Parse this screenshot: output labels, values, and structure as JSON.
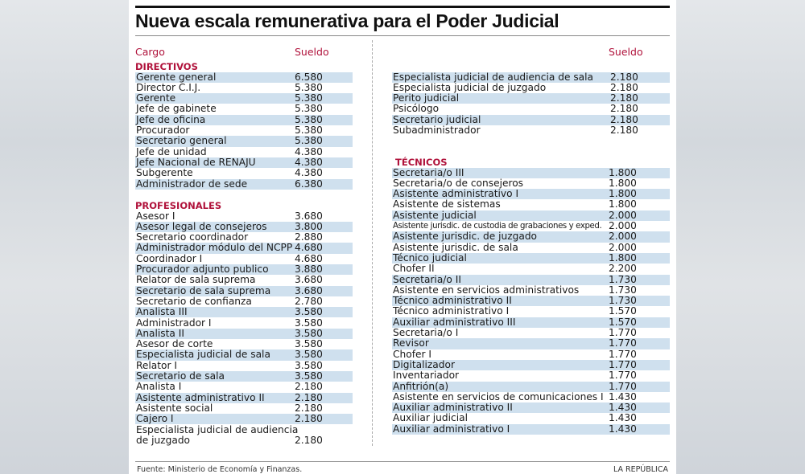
{
  "title": "Nueva escala remunerativa para el Poder Judicial",
  "headers": {
    "cargo": "Cargo",
    "sueldo": "Sueldo"
  },
  "left": {
    "directivos": {
      "label": "DIRECTIVOS",
      "stripe": "odd",
      "rows": [
        {
          "cargo": "Gerente general",
          "sueldo": "6.580"
        },
        {
          "cargo": "Director C.I.J.",
          "sueldo": "5.380"
        },
        {
          "cargo": "Gerente",
          "sueldo": "5.380"
        },
        {
          "cargo": "Jefe de gabinete",
          "sueldo": "5.380"
        },
        {
          "cargo": "Jefe de oficina",
          "sueldo": "5.380"
        },
        {
          "cargo": "Procurador",
          "sueldo": "5.380"
        },
        {
          "cargo": "Secretario general",
          "sueldo": "5.380"
        },
        {
          "cargo": "Jefe de unidad",
          "sueldo": "4.380"
        },
        {
          "cargo": "Jefe Nacional de RENAJU",
          "sueldo": "4.380"
        },
        {
          "cargo": "Subgerente",
          "sueldo": "4.380"
        },
        {
          "cargo": "Administrador de sede",
          "sueldo": "6.380"
        }
      ]
    },
    "profesionales": {
      "label": "PROFESIONALES",
      "stripe": "even",
      "rows": [
        {
          "cargo": "Asesor I",
          "sueldo": "3.680"
        },
        {
          "cargo": "Asesor legal de consejeros",
          "sueldo": "3.800"
        },
        {
          "cargo": "Secretario coordinador",
          "sueldo": "2.880"
        },
        {
          "cargo": "Administrador módulo del NCPP",
          "sueldo": "4.680"
        },
        {
          "cargo": "Coordinador I",
          "sueldo": "4.680"
        },
        {
          "cargo": "Procurador adjunto publico",
          "sueldo": "3.880"
        },
        {
          "cargo": "Relator de sala suprema",
          "sueldo": "3.680"
        },
        {
          "cargo": "Secretario de sala suprema",
          "sueldo": "3.680"
        },
        {
          "cargo": "Secretario de confianza",
          "sueldo": "2.780"
        },
        {
          "cargo": "Analista III",
          "sueldo": "3.580"
        },
        {
          "cargo": "Administrador I",
          "sueldo": "3.580"
        },
        {
          "cargo": "Analista II",
          "sueldo": "3.580"
        },
        {
          "cargo": "Asesor de corte",
          "sueldo": "3.580"
        },
        {
          "cargo": "Especialista judicial de sala",
          "sueldo": "3.580"
        },
        {
          "cargo": "Relator I",
          "sueldo": "3.580"
        },
        {
          "cargo": "Secretario de sala",
          "sueldo": "3.580"
        },
        {
          "cargo": "Analista I",
          "sueldo": "2.180"
        },
        {
          "cargo": "Asistente administrativo II",
          "sueldo": "2.180"
        },
        {
          "cargo": "Asistente social",
          "sueldo": "2.180"
        },
        {
          "cargo": "Cajero I",
          "sueldo": "2.180"
        },
        {
          "cargo": "Especialista judicial de audiencia",
          "cargo2": "de juzgado",
          "sueldo": "2.180"
        }
      ]
    }
  },
  "right": {
    "profesionales_cont": {
      "stripe": "odd",
      "rows": [
        {
          "cargo": "Especialista judicial de audiencia de sala",
          "sueldo": "2.180"
        },
        {
          "cargo": "Especialista judicial de juzgado",
          "sueldo": "2.180"
        },
        {
          "cargo": "Perito judicial",
          "sueldo": "2.180"
        },
        {
          "cargo": "Psicólogo",
          "sueldo": "2.180"
        },
        {
          "cargo": "Secretario judicial",
          "sueldo": "2.180"
        },
        {
          "cargo": "Subadministrador",
          "sueldo": "2.180"
        }
      ]
    },
    "tecnicos": {
      "label": "TÉCNICOS",
      "stripe": "odd",
      "rows": [
        {
          "cargo": "Secretaria/o III",
          "sueldo": "1.800"
        },
        {
          "cargo": "Secretaria/o de consejeros",
          "sueldo": "1.800"
        },
        {
          "cargo": "Asistente administrativo I",
          "sueldo": "1.800"
        },
        {
          "cargo": "Asistente de sistemas",
          "sueldo": "1.800"
        },
        {
          "cargo": "Asistente judicial",
          "sueldo": "2.000"
        },
        {
          "cargo": "Asistente jurisdic. de custodia de grabaciones y exped.",
          "sueldo": "2.000",
          "small": true
        },
        {
          "cargo": "Asistente jurisdic. de juzgado",
          "sueldo": "2.000"
        },
        {
          "cargo": "Asistente jurisdic. de sala",
          "sueldo": "2.000"
        },
        {
          "cargo": "Técnico judicial",
          "sueldo": "1.800"
        },
        {
          "cargo": "Chofer II",
          "sueldo": "2.200"
        },
        {
          "cargo": "Secretaria/o II",
          "sueldo": "1.730"
        },
        {
          "cargo": "Asistente en servicios administrativos",
          "sueldo": "1.730"
        },
        {
          "cargo": "Técnico administrativo II",
          "sueldo": "1.730"
        },
        {
          "cargo": "Técnico administrativo I",
          "sueldo": "1.570"
        },
        {
          "cargo": "Auxiliar administrativo III",
          "sueldo": "1.570"
        },
        {
          "cargo": "Secretaria/o I",
          "sueldo": "1.770"
        },
        {
          "cargo": "Revisor",
          "sueldo": "1.770"
        },
        {
          "cargo": "Chofer I",
          "sueldo": "1.770"
        },
        {
          "cargo": "Digitalizador",
          "sueldo": "1.770"
        },
        {
          "cargo": "Inventariador",
          "sueldo": "1.770"
        },
        {
          "cargo": "Anfitrión(a)",
          "sueldo": "1.770"
        },
        {
          "cargo": "Asistente en servicios de comunicaciones I",
          "sueldo": "1.430"
        },
        {
          "cargo": "Auxiliar administrativo II",
          "sueldo": "1.430"
        },
        {
          "cargo": "Auxiliar judicial",
          "sueldo": "1.430"
        },
        {
          "cargo": "Auxiliar administrativo I",
          "sueldo": "1.430"
        }
      ]
    }
  },
  "footer": {
    "source": "Fuente: Ministerio de Economía y Finanzas.",
    "brand": "LA REPÚBLICA"
  },
  "colors": {
    "accent": "#b0123b",
    "stripe": "#cfe0ee"
  }
}
